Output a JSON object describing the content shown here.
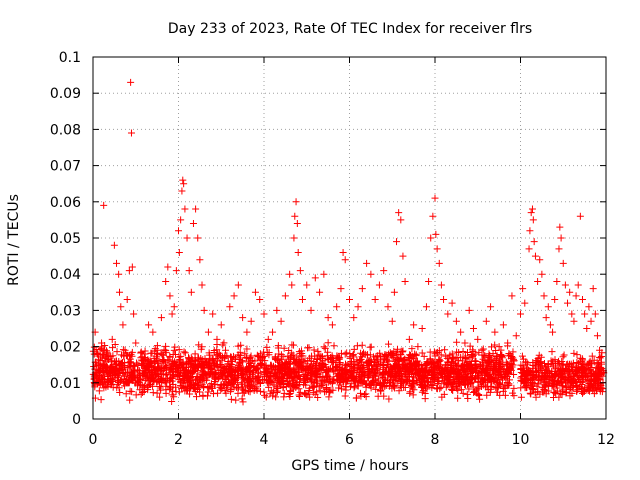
{
  "chart_data": {
    "type": "scatter",
    "title": "Day 233 of 2023, Rate Of TEC Index for receiver flrs",
    "xlabel": "GPS time / hours",
    "ylabel": "ROTI / TECUs",
    "xlim": [
      0,
      12
    ],
    "ylim": [
      0,
      0.1
    ],
    "xticks": [
      0,
      2,
      4,
      6,
      8,
      10,
      12
    ],
    "xtick_labels": [
      "0",
      "2",
      "4",
      "6",
      "8",
      "10",
      "12"
    ],
    "yticks": [
      0,
      0.01,
      0.02,
      0.03,
      0.04,
      0.05,
      0.06,
      0.07,
      0.08,
      0.09,
      0.1
    ],
    "ytick_labels": [
      "0",
      "0.01",
      "0.02",
      "0.03",
      "0.04",
      "0.05",
      "0.06",
      "0.07",
      "0.08",
      "0.09",
      "0.1"
    ],
    "grid": true,
    "marker": "+",
    "color": "#ff0000",
    "series": [
      {
        "name": "ROTI",
        "points": [
          [
            0.05,
            0.024
          ],
          [
            0.1,
            0.018
          ],
          [
            0.15,
            0.012
          ],
          [
            0.2,
            0.021
          ],
          [
            0.25,
            0.059
          ],
          [
            0.3,
            0.016
          ],
          [
            0.35,
            0.009
          ],
          [
            0.4,
            0.014
          ],
          [
            0.45,
            0.022
          ],
          [
            0.5,
            0.048
          ],
          [
            0.55,
            0.043
          ],
          [
            0.6,
            0.04
          ],
          [
            0.62,
            0.035
          ],
          [
            0.65,
            0.031
          ],
          [
            0.7,
            0.026
          ],
          [
            0.75,
            0.019
          ],
          [
            0.8,
            0.033
          ],
          [
            0.85,
            0.041
          ],
          [
            0.88,
            0.093
          ],
          [
            0.9,
            0.079
          ],
          [
            0.92,
            0.042
          ],
          [
            0.95,
            0.029
          ],
          [
            1.0,
            0.021
          ],
          [
            1.05,
            0.015
          ],
          [
            1.1,
            0.012
          ],
          [
            1.2,
            0.017
          ],
          [
            1.3,
            0.026
          ],
          [
            1.4,
            0.024
          ],
          [
            1.5,
            0.019
          ],
          [
            1.6,
            0.028
          ],
          [
            1.7,
            0.038
          ],
          [
            1.75,
            0.042
          ],
          [
            1.8,
            0.034
          ],
          [
            1.85,
            0.029
          ],
          [
            1.9,
            0.031
          ],
          [
            1.95,
            0.041
          ],
          [
            2.0,
            0.052
          ],
          [
            2.02,
            0.046
          ],
          [
            2.05,
            0.055
          ],
          [
            2.08,
            0.063
          ],
          [
            2.1,
            0.066
          ],
          [
            2.12,
            0.065
          ],
          [
            2.15,
            0.058
          ],
          [
            2.2,
            0.05
          ],
          [
            2.25,
            0.041
          ],
          [
            2.3,
            0.035
          ],
          [
            2.35,
            0.054
          ],
          [
            2.4,
            0.058
          ],
          [
            2.45,
            0.05
          ],
          [
            2.5,
            0.044
          ],
          [
            2.55,
            0.037
          ],
          [
            2.6,
            0.03
          ],
          [
            2.7,
            0.024
          ],
          [
            2.8,
            0.029
          ],
          [
            2.9,
            0.022
          ],
          [
            3.0,
            0.026
          ],
          [
            3.1,
            0.019
          ],
          [
            3.2,
            0.031
          ],
          [
            3.3,
            0.034
          ],
          [
            3.4,
            0.037
          ],
          [
            3.5,
            0.028
          ],
          [
            3.6,
            0.024
          ],
          [
            3.7,
            0.027
          ],
          [
            3.8,
            0.035
          ],
          [
            3.9,
            0.033
          ],
          [
            4.0,
            0.029
          ],
          [
            4.1,
            0.022
          ],
          [
            4.2,
            0.024
          ],
          [
            4.3,
            0.03
          ],
          [
            4.4,
            0.027
          ],
          [
            4.5,
            0.034
          ],
          [
            4.6,
            0.04
          ],
          [
            4.65,
            0.037
          ],
          [
            4.7,
            0.05
          ],
          [
            4.72,
            0.056
          ],
          [
            4.75,
            0.06
          ],
          [
            4.78,
            0.054
          ],
          [
            4.8,
            0.046
          ],
          [
            4.85,
            0.041
          ],
          [
            4.9,
            0.033
          ],
          [
            5.0,
            0.037
          ],
          [
            5.1,
            0.03
          ],
          [
            5.2,
            0.039
          ],
          [
            5.3,
            0.035
          ],
          [
            5.4,
            0.04
          ],
          [
            5.5,
            0.028
          ],
          [
            5.6,
            0.026
          ],
          [
            5.7,
            0.031
          ],
          [
            5.8,
            0.036
          ],
          [
            5.85,
            0.046
          ],
          [
            5.9,
            0.044
          ],
          [
            6.0,
            0.033
          ],
          [
            6.1,
            0.028
          ],
          [
            6.2,
            0.031
          ],
          [
            6.3,
            0.036
          ],
          [
            6.4,
            0.043
          ],
          [
            6.5,
            0.04
          ],
          [
            6.6,
            0.033
          ],
          [
            6.7,
            0.037
          ],
          [
            6.8,
            0.041
          ],
          [
            6.9,
            0.031
          ],
          [
            7.0,
            0.027
          ],
          [
            7.05,
            0.035
          ],
          [
            7.1,
            0.049
          ],
          [
            7.15,
            0.057
          ],
          [
            7.2,
            0.055
          ],
          [
            7.25,
            0.045
          ],
          [
            7.3,
            0.038
          ],
          [
            7.4,
            0.022
          ],
          [
            7.5,
            0.026
          ],
          [
            7.6,
            0.02
          ],
          [
            7.7,
            0.025
          ],
          [
            7.8,
            0.031
          ],
          [
            7.85,
            0.038
          ],
          [
            7.9,
            0.05
          ],
          [
            7.95,
            0.056
          ],
          [
            8.0,
            0.061
          ],
          [
            8.02,
            0.051
          ],
          [
            8.05,
            0.047
          ],
          [
            8.1,
            0.043
          ],
          [
            8.15,
            0.037
          ],
          [
            8.2,
            0.033
          ],
          [
            8.3,
            0.029
          ],
          [
            8.4,
            0.032
          ],
          [
            8.5,
            0.027
          ],
          [
            8.6,
            0.024
          ],
          [
            8.7,
            0.021
          ],
          [
            8.8,
            0.03
          ],
          [
            8.9,
            0.025
          ],
          [
            9.0,
            0.022
          ],
          [
            9.1,
            0.019
          ],
          [
            9.2,
            0.027
          ],
          [
            9.3,
            0.031
          ],
          [
            9.4,
            0.024
          ],
          [
            9.5,
            0.02
          ],
          [
            9.6,
            0.026
          ],
          [
            9.7,
            0.021
          ],
          [
            9.8,
            0.034
          ],
          [
            9.9,
            0.023
          ],
          [
            10.0,
            0.029
          ],
          [
            10.05,
            0.036
          ],
          [
            10.1,
            0.032
          ],
          [
            10.2,
            0.047
          ],
          [
            10.22,
            0.052
          ],
          [
            10.25,
            0.057
          ],
          [
            10.28,
            0.058
          ],
          [
            10.3,
            0.055
          ],
          [
            10.32,
            0.049
          ],
          [
            10.35,
            0.045
          ],
          [
            10.4,
            0.038
          ],
          [
            10.45,
            0.044
          ],
          [
            10.5,
            0.04
          ],
          [
            10.55,
            0.034
          ],
          [
            10.6,
            0.028
          ],
          [
            10.65,
            0.031
          ],
          [
            10.7,
            0.026
          ],
          [
            10.75,
            0.024
          ],
          [
            10.8,
            0.033
          ],
          [
            10.85,
            0.038
          ],
          [
            10.9,
            0.047
          ],
          [
            10.92,
            0.053
          ],
          [
            10.95,
            0.05
          ],
          [
            11.0,
            0.043
          ],
          [
            11.05,
            0.037
          ],
          [
            11.1,
            0.032
          ],
          [
            11.15,
            0.035
          ],
          [
            11.2,
            0.029
          ],
          [
            11.25,
            0.027
          ],
          [
            11.3,
            0.034
          ],
          [
            11.35,
            0.037
          ],
          [
            11.4,
            0.056
          ],
          [
            11.45,
            0.033
          ],
          [
            11.5,
            0.029
          ],
          [
            11.55,
            0.025
          ],
          [
            11.6,
            0.031
          ],
          [
            11.65,
            0.027
          ],
          [
            11.7,
            0.036
          ],
          [
            11.75,
            0.029
          ],
          [
            11.8,
            0.023
          ],
          [
            11.85,
            0.019
          ],
          [
            11.9,
            0.014
          ]
        ]
      }
    ],
    "dense_band": {
      "description_values": "dense ROTI scatter, typical range",
      "segments": [
        {
          "x_range": [
            0.0,
            9.85
          ],
          "y_range": [
            0.004,
            0.022
          ]
        },
        {
          "x_range": [
            10.0,
            11.95
          ],
          "y_range": [
            0.004,
            0.02
          ]
        }
      ],
      "markers_per_hour": 260
    }
  }
}
